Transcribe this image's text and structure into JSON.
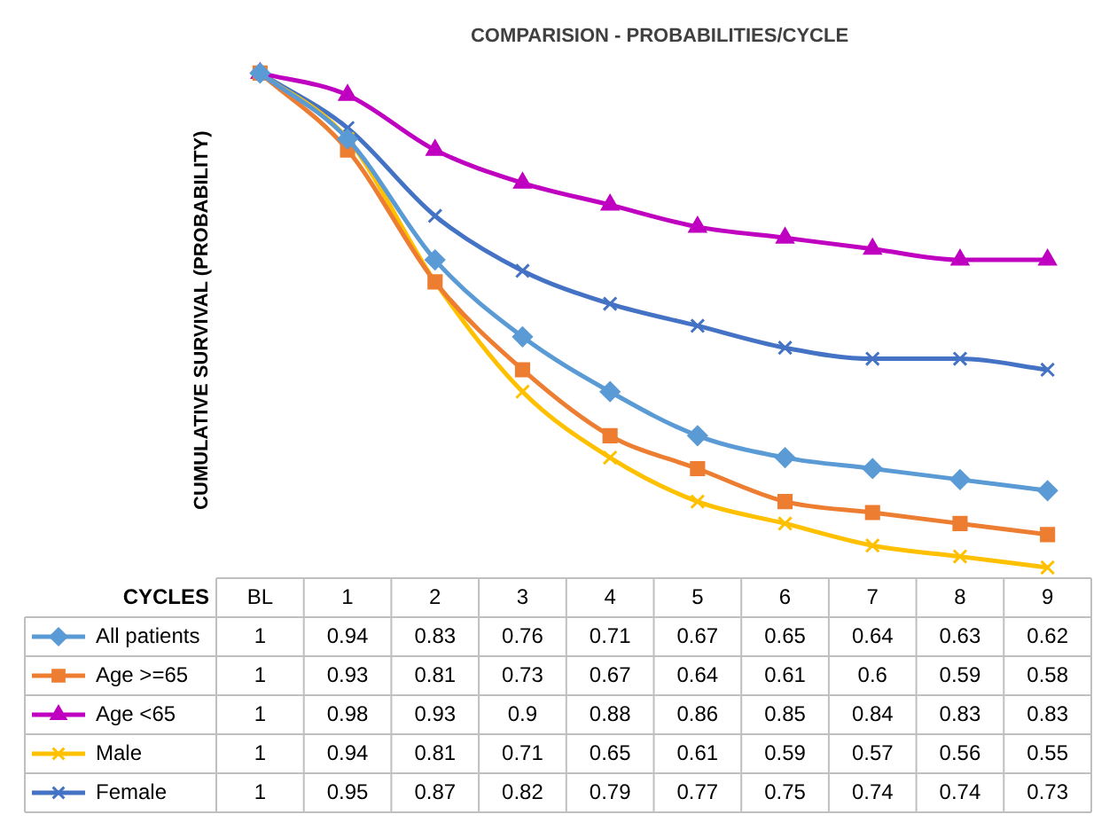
{
  "chart_data": {
    "type": "line",
    "title": "COMPARISION - PROBABILITIES/CYCLE",
    "ylabel": "CUMULATIVE SURVIVAL (PROBABILITY)",
    "xlabel": "CYCLES",
    "categories": [
      "BL",
      "1",
      "2",
      "3",
      "4",
      "5",
      "6",
      "7",
      "8",
      "9"
    ],
    "legend": "bottom left",
    "data_labels": true,
    "series": [
      {
        "name": "All patients",
        "color": "#5b9bd5",
        "marker": "diamond",
        "values": [
          1,
          0.94,
          0.83,
          0.76,
          0.71,
          0.67,
          0.65,
          0.64,
          0.63,
          0.62
        ]
      },
      {
        "name": "Age >=65",
        "color": "#ed7d31",
        "marker": "square",
        "values": [
          1,
          0.93,
          0.81,
          0.73,
          0.67,
          0.64,
          0.61,
          0.6,
          0.59,
          0.58
        ]
      },
      {
        "name": "Age <65",
        "color": "#c000c0",
        "marker": "triangle",
        "values": [
          1,
          0.98,
          0.93,
          0.9,
          0.88,
          0.86,
          0.85,
          0.84,
          0.83,
          0.83
        ]
      },
      {
        "name": "Male",
        "color": "#ffc000",
        "marker": "cross",
        "values": [
          1,
          0.94,
          0.81,
          0.71,
          0.65,
          0.61,
          0.59,
          0.57,
          0.56,
          0.55
        ]
      },
      {
        "name": "Female",
        "color": "#4472c4",
        "marker": "cross",
        "values": [
          1,
          0.95,
          0.87,
          0.82,
          0.79,
          0.77,
          0.75,
          0.74,
          0.74,
          0.73
        ]
      }
    ]
  }
}
